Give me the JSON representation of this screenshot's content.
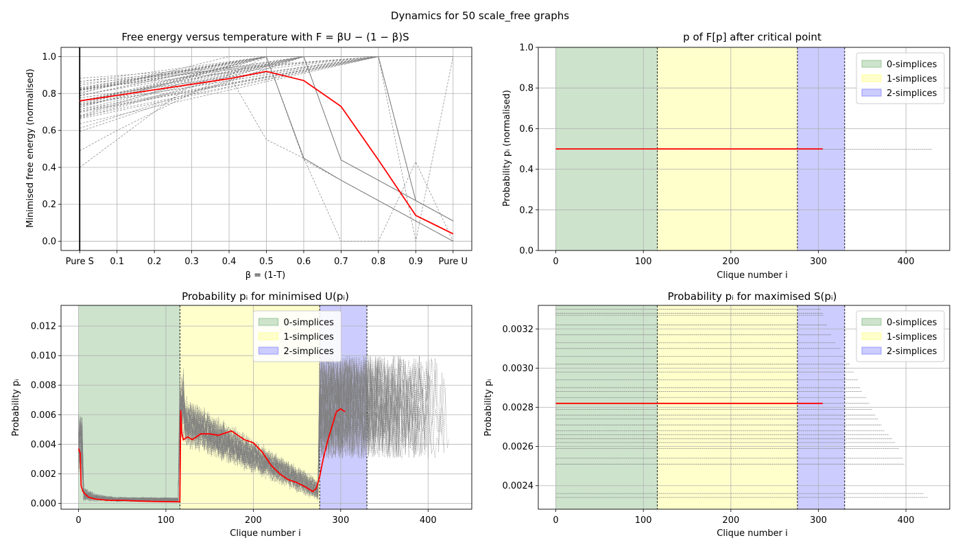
{
  "figure": {
    "suptitle": "Dynamics for 50 scale_free graphs"
  },
  "colors": {
    "highlight": "#ff0000",
    "ensemble": "#808080",
    "grid": "#b0b0b0",
    "zero_simplices": "#cde3cc",
    "one_simplices": "#ffffcc",
    "two_simplices": "#ccccff"
  },
  "chart_data": [
    {
      "id": "free-energy",
      "type": "line",
      "title": "Free energy versus temperature with F = βU − (1 − β)S",
      "xlabel": "β = (1-T)",
      "ylabel": "Minimised free energy (normalised)",
      "x_ticks": [
        "Pure S",
        "0.1",
        "0.2",
        "0.3",
        "0.4",
        "0.5",
        "0.6",
        "0.7",
        "0.8",
        "0.9",
        "Pure U"
      ],
      "y_ticks": [
        "0.0",
        "0.2",
        "0.4",
        "0.6",
        "0.8",
        "1.0"
      ],
      "xlim": [
        -0.05,
        1.05
      ],
      "ylim": [
        -0.05,
        1.05
      ],
      "grid": true,
      "x": [
        0,
        0.1,
        0.2,
        0.3,
        0.4,
        0.5,
        0.6,
        0.7,
        0.8,
        0.9,
        1.0
      ],
      "highlight": [
        0.76,
        0.79,
        0.82,
        0.85,
        0.88,
        0.92,
        0.87,
        0.73,
        0.44,
        0.14,
        0.04
      ],
      "ensemble_description_free": true,
      "ensemble_groups": [
        {
          "start": [
            0.68,
            0.88
          ],
          "peak_x": 0.5,
          "after": [
            0.45,
            0.33,
            0.22,
            0.11,
            0.0
          ]
        },
        {
          "start": [
            0.58,
            0.84
          ],
          "peak_x": 0.6,
          "after": [
            0.44,
            0.33,
            0.22,
            0.11,
            0.0
          ]
        },
        {
          "start": [
            0.62,
            0.9
          ],
          "peak_x": 0.8,
          "after": [
            0.22,
            0.11,
            0.0
          ]
        }
      ],
      "critical_line_x": 0
    },
    {
      "id": "p-after-critical",
      "type": "line",
      "title": "p of F[p] after critical point",
      "xlabel": "Clique number i",
      "ylabel": "Probability pᵢ (normalised)",
      "x_ticks": [
        0,
        100,
        200,
        300,
        400
      ],
      "y_ticks": [
        "0.0",
        "0.2",
        "0.4",
        "0.6",
        "0.8",
        "1.0"
      ],
      "xlim": [
        -20,
        450
      ],
      "ylim": [
        0,
        1
      ],
      "grid": true,
      "bands": [
        {
          "name": "0-simplices",
          "from": 0,
          "to": 116
        },
        {
          "name": "1-simplices",
          "from": 116,
          "to": 276
        },
        {
          "name": "2-simplices",
          "from": 276,
          "to": 330
        }
      ],
      "legend": [
        "0-simplices",
        "1-simplices",
        "2-simplices"
      ],
      "legend_loc": "upper right",
      "highlight_line": {
        "x_end": 305,
        "y": 0.5
      },
      "ensemble_line": {
        "x_end": 430,
        "y": 0.5
      }
    },
    {
      "id": "p-min-u",
      "type": "line",
      "title": "Probability pᵢ for minimised U(pᵢ)",
      "xlabel": "Clique number i",
      "ylabel": "Probability pᵢ",
      "x_ticks": [
        0,
        100,
        200,
        300,
        400
      ],
      "y_ticks": [
        "0.000",
        "0.002",
        "0.004",
        "0.006",
        "0.008",
        "0.010",
        "0.012"
      ],
      "xlim": [
        -20,
        450
      ],
      "ylim": [
        -0.0004,
        0.0134
      ],
      "grid": true,
      "bands": [
        {
          "name": "0-simplices",
          "from": 0,
          "to": 116
        },
        {
          "name": "1-simplices",
          "from": 116,
          "to": 276
        },
        {
          "name": "2-simplices",
          "from": 276,
          "to": 330
        }
      ],
      "legend": [
        "0-simplices",
        "1-simplices",
        "2-simplices"
      ],
      "legend_loc": "upper center",
      "highlight_x": [
        0,
        2,
        3,
        5,
        8,
        12,
        18,
        25,
        35,
        50,
        70,
        90,
        110,
        116,
        117,
        118,
        120,
        125,
        130,
        140,
        150,
        160,
        170,
        175,
        180,
        190,
        200,
        210,
        220,
        230,
        240,
        250,
        260,
        268,
        272,
        276,
        280,
        285,
        290,
        295,
        300,
        305
      ],
      "highlight_y": [
        0.0037,
        0.0034,
        0.0012,
        0.0008,
        0.0006,
        0.0004,
        0.0003,
        0.00025,
        0.0002,
        0.0002,
        0.00015,
        0.00012,
        0.0001,
        0.0001,
        0.0063,
        0.0048,
        0.0043,
        0.0045,
        0.0043,
        0.0047,
        0.0047,
        0.0046,
        0.0048,
        0.0049,
        0.0047,
        0.0043,
        0.0041,
        0.0035,
        0.0026,
        0.002,
        0.0016,
        0.0014,
        0.0011,
        0.0008,
        0.001,
        0.0018,
        0.003,
        0.0042,
        0.0052,
        0.0062,
        0.0064,
        0.0062
      ]
    },
    {
      "id": "p-max-s",
      "type": "line",
      "title": "Probability pᵢ for maximised S(pᵢ)",
      "xlabel": "Clique number i",
      "ylabel": "Probability pᵢ",
      "x_ticks": [
        0,
        100,
        200,
        300,
        400
      ],
      "y_ticks": [
        "0.0024",
        "0.0026",
        "0.0028",
        "0.0030",
        "0.0032"
      ],
      "xlim": [
        -20,
        450
      ],
      "ylim": [
        0.00228,
        0.00332
      ],
      "grid": true,
      "bands": [
        {
          "name": "0-simplices",
          "from": 0,
          "to": 116
        },
        {
          "name": "1-simplices",
          "from": 116,
          "to": 276
        },
        {
          "name": "2-simplices",
          "from": 276,
          "to": 330
        }
      ],
      "legend": [
        "0-simplices",
        "1-simplices",
        "2-simplices"
      ],
      "legend_loc": "upper right",
      "highlight_line": {
        "x_end": 305,
        "y": 0.00282
      },
      "ensemble_lines": [
        {
          "x_end": 303,
          "y": 0.0033
        },
        {
          "x_end": 305,
          "y": 0.00328
        },
        {
          "x_end": 306,
          "y": 0.00327
        },
        {
          "x_end": 310,
          "y": 0.00322
        },
        {
          "x_end": 315,
          "y": 0.00317
        },
        {
          "x_end": 320,
          "y": 0.00313
        },
        {
          "x_end": 325,
          "y": 0.0031
        },
        {
          "x_end": 330,
          "y": 0.00306
        },
        {
          "x_end": 336,
          "y": 0.00302
        },
        {
          "x_end": 340,
          "y": 0.00298
        },
        {
          "x_end": 345,
          "y": 0.00294
        },
        {
          "x_end": 348,
          "y": 0.0029
        },
        {
          "x_end": 350,
          "y": 0.00288
        },
        {
          "x_end": 355,
          "y": 0.00285
        },
        {
          "x_end": 358,
          "y": 0.00282
        },
        {
          "x_end": 362,
          "y": 0.00279
        },
        {
          "x_end": 365,
          "y": 0.00276
        },
        {
          "x_end": 368,
          "y": 0.00274
        },
        {
          "x_end": 372,
          "y": 0.00271
        },
        {
          "x_end": 376,
          "y": 0.00268
        },
        {
          "x_end": 380,
          "y": 0.00266
        },
        {
          "x_end": 384,
          "y": 0.00264
        },
        {
          "x_end": 388,
          "y": 0.00262
        },
        {
          "x_end": 392,
          "y": 0.00259
        },
        {
          "x_end": 396,
          "y": 0.00254
        },
        {
          "x_end": 398,
          "y": 0.00251
        },
        {
          "x_end": 420,
          "y": 0.00236
        },
        {
          "x_end": 425,
          "y": 0.00234
        }
      ]
    }
  ]
}
